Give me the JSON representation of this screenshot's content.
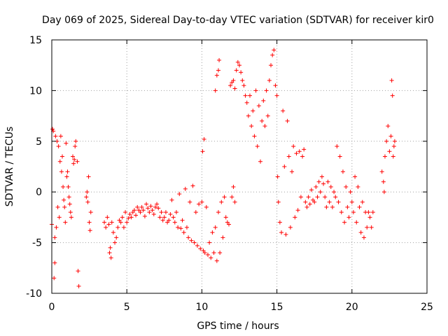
{
  "chart_data": {
    "type": "scatter",
    "title": "Day 069 of 2025, Sidereal Day-to-day VTEC variation (SDTVAR) for receiver kir0",
    "xlabel": "GPS time / hours",
    "ylabel": "SDTVAR / TECUs",
    "xlim": [
      0,
      25
    ],
    "ylim": [
      -10,
      15
    ],
    "x_ticks": [
      0,
      5,
      10,
      15,
      20,
      25
    ],
    "y_ticks": [
      -10,
      -5,
      0,
      5,
      10,
      15
    ],
    "x_tick_labels": [
      "0",
      "5",
      "10",
      "15",
      "20",
      "25"
    ],
    "y_tick_labels": [
      "-10",
      "-5",
      "0",
      "5",
      "10",
      "15"
    ],
    "grid": true,
    "marker": "+",
    "color": "#ff0000",
    "series": [
      {
        "name": "SDTVAR",
        "points": [
          [
            0.0,
            -3.2
          ],
          [
            0.05,
            6.2
          ],
          [
            0.1,
            6.0
          ],
          [
            0.15,
            -8.5
          ],
          [
            0.2,
            -4.5
          ],
          [
            0.2,
            -7.0
          ],
          [
            0.25,
            5.5
          ],
          [
            0.3,
            -3.5
          ],
          [
            0.35,
            5.0
          ],
          [
            0.4,
            -1.5
          ],
          [
            0.45,
            4.5
          ],
          [
            0.5,
            -2.5
          ],
          [
            0.55,
            3.0
          ],
          [
            0.6,
            5.5
          ],
          [
            0.65,
            2.0
          ],
          [
            0.7,
            3.5
          ],
          [
            0.75,
            0.5
          ],
          [
            0.8,
            -0.8
          ],
          [
            0.85,
            -1.5
          ],
          [
            0.9,
            -3.0
          ],
          [
            0.95,
            4.8
          ],
          [
            1.0,
            1.5
          ],
          [
            1.05,
            2.0
          ],
          [
            1.1,
            0.5
          ],
          [
            1.15,
            -0.5
          ],
          [
            1.2,
            -1.2
          ],
          [
            1.25,
            -2.0
          ],
          [
            1.3,
            -2.5
          ],
          [
            1.4,
            3.5
          ],
          [
            1.45,
            2.8
          ],
          [
            1.5,
            3.2
          ],
          [
            1.55,
            4.5
          ],
          [
            1.6,
            5.0
          ],
          [
            1.7,
            3.0
          ],
          [
            1.75,
            -7.8
          ],
          [
            1.8,
            -9.3
          ],
          [
            2.3,
            -0.5
          ],
          [
            2.35,
            0.0
          ],
          [
            2.4,
            -1.0
          ],
          [
            2.45,
            1.5
          ],
          [
            2.5,
            -3.0
          ],
          [
            2.55,
            -3.8
          ],
          [
            2.6,
            -2.0
          ],
          [
            3.5,
            -3.0
          ],
          [
            3.6,
            -3.5
          ],
          [
            3.7,
            -2.5
          ],
          [
            3.8,
            -3.2
          ],
          [
            3.85,
            -6.0
          ],
          [
            3.9,
            -5.5
          ],
          [
            3.95,
            -6.5
          ],
          [
            4.0,
            -3.0
          ],
          [
            4.1,
            -4.0
          ],
          [
            4.2,
            -5.0
          ],
          [
            4.3,
            -4.5
          ],
          [
            4.4,
            -3.5
          ],
          [
            4.5,
            -2.8
          ],
          [
            4.6,
            -3.0
          ],
          [
            4.7,
            -2.5
          ],
          [
            4.8,
            -3.5
          ],
          [
            4.9,
            -2.0
          ],
          [
            5.0,
            -3.0
          ],
          [
            5.1,
            -2.6
          ],
          [
            5.2,
            -2.2
          ],
          [
            5.3,
            -2.5
          ],
          [
            5.4,
            -2.0
          ],
          [
            5.5,
            -1.8
          ],
          [
            5.6,
            -2.3
          ],
          [
            5.7,
            -1.5
          ],
          [
            5.8,
            -1.8
          ],
          [
            5.9,
            -2.0
          ],
          [
            6.0,
            -1.5
          ],
          [
            6.1,
            -1.8
          ],
          [
            6.2,
            -2.4
          ],
          [
            6.3,
            -1.2
          ],
          [
            6.4,
            -1.6
          ],
          [
            6.5,
            -2.0
          ],
          [
            6.6,
            -1.4
          ],
          [
            6.7,
            -1.8
          ],
          [
            6.8,
            -2.2
          ],
          [
            6.9,
            -1.5
          ],
          [
            7.0,
            -1.2
          ],
          [
            7.1,
            -1.6
          ],
          [
            7.2,
            -2.5
          ],
          [
            7.3,
            -2.0
          ],
          [
            7.4,
            -2.8
          ],
          [
            7.5,
            -2.5
          ],
          [
            7.6,
            -2.0
          ],
          [
            7.7,
            -3.0
          ],
          [
            7.8,
            -2.8
          ],
          [
            7.9,
            -2.2
          ],
          [
            8.0,
            -0.8
          ],
          [
            8.1,
            -2.5
          ],
          [
            8.2,
            -3.0
          ],
          [
            8.3,
            -2.0
          ],
          [
            8.4,
            -3.5
          ],
          [
            8.5,
            -0.2
          ],
          [
            8.6,
            -3.6
          ],
          [
            8.7,
            -2.8
          ],
          [
            8.8,
            -4.0
          ],
          [
            8.9,
            0.3
          ],
          [
            9.0,
            -3.5
          ],
          [
            9.1,
            -4.5
          ],
          [
            9.2,
            -1.0
          ],
          [
            9.3,
            -4.8
          ],
          [
            9.4,
            0.6
          ],
          [
            9.5,
            -5.0
          ],
          [
            9.6,
            -2.0
          ],
          [
            9.7,
            -5.3
          ],
          [
            9.8,
            -1.2
          ],
          [
            9.9,
            -5.6
          ],
          [
            10.0,
            -1.0
          ],
          [
            10.05,
            4.0
          ],
          [
            10.1,
            -5.8
          ],
          [
            10.15,
            5.2
          ],
          [
            10.2,
            -6.0
          ],
          [
            10.3,
            -1.5
          ],
          [
            10.4,
            -6.2
          ],
          [
            10.5,
            -5.0
          ],
          [
            10.6,
            -6.5
          ],
          [
            10.7,
            -4.0
          ],
          [
            10.8,
            -6.0
          ],
          [
            10.9,
            -3.5
          ],
          [
            11.0,
            -6.8
          ],
          [
            11.1,
            -2.0
          ],
          [
            11.2,
            -6.0
          ],
          [
            11.3,
            -1.0
          ],
          [
            11.4,
            -4.5
          ],
          [
            11.5,
            -0.5
          ],
          [
            11.6,
            -2.5
          ],
          [
            11.7,
            -3.0
          ],
          [
            11.8,
            -3.2
          ],
          [
            11.1,
            12.0
          ],
          [
            11.15,
            13.0
          ],
          [
            11.0,
            11.5
          ],
          [
            10.9,
            10.0
          ],
          [
            12.0,
            -0.5
          ],
          [
            12.1,
            0.5
          ],
          [
            12.2,
            -1.0
          ],
          [
            11.9,
            10.5
          ],
          [
            12.0,
            10.8
          ],
          [
            12.1,
            11.0
          ],
          [
            12.2,
            10.2
          ],
          [
            12.3,
            12.0
          ],
          [
            12.4,
            12.8
          ],
          [
            12.5,
            12.5
          ],
          [
            12.6,
            11.8
          ],
          [
            12.7,
            11.0
          ],
          [
            12.8,
            10.5
          ],
          [
            12.9,
            9.5
          ],
          [
            13.0,
            8.8
          ],
          [
            13.1,
            7.5
          ],
          [
            13.2,
            9.5
          ],
          [
            13.3,
            6.5
          ],
          [
            13.4,
            8.0
          ],
          [
            13.5,
            5.5
          ],
          [
            13.6,
            10.0
          ],
          [
            13.7,
            4.5
          ],
          [
            13.8,
            8.5
          ],
          [
            13.9,
            3.0
          ],
          [
            14.0,
            7.0
          ],
          [
            14.1,
            9.0
          ],
          [
            14.2,
            6.5
          ],
          [
            14.3,
            10.0
          ],
          [
            14.4,
            7.5
          ],
          [
            14.5,
            11.0
          ],
          [
            14.6,
            12.5
          ],
          [
            14.7,
            13.5
          ],
          [
            14.8,
            14.0
          ],
          [
            14.9,
            10.5
          ],
          [
            15.0,
            9.5
          ],
          [
            15.05,
            1.5
          ],
          [
            15.1,
            -1.0
          ],
          [
            15.2,
            -3.0
          ],
          [
            15.3,
            -4.0
          ],
          [
            15.4,
            8.0
          ],
          [
            15.5,
            2.5
          ],
          [
            15.6,
            -4.2
          ],
          [
            15.7,
            7.0
          ],
          [
            15.8,
            3.5
          ],
          [
            15.9,
            -3.5
          ],
          [
            16.0,
            2.0
          ],
          [
            16.1,
            4.5
          ],
          [
            16.2,
            -2.5
          ],
          [
            16.3,
            3.8
          ],
          [
            16.4,
            -1.8
          ],
          [
            16.5,
            4.0
          ],
          [
            16.6,
            -0.5
          ],
          [
            16.7,
            3.5
          ],
          [
            16.8,
            4.2
          ],
          [
            16.9,
            -1.0
          ],
          [
            17.0,
            -1.5
          ],
          [
            17.1,
            -0.5
          ],
          [
            17.2,
            -1.2
          ],
          [
            17.3,
            0.2
          ],
          [
            17.4,
            -0.8
          ],
          [
            17.5,
            -1.0
          ],
          [
            17.6,
            0.5
          ],
          [
            17.7,
            -0.5
          ],
          [
            17.8,
            1.0
          ],
          [
            17.9,
            0.0
          ],
          [
            18.0,
            1.5
          ],
          [
            18.1,
            0.8
          ],
          [
            18.2,
            -0.5
          ],
          [
            18.3,
            -1.5
          ],
          [
            18.4,
            1.0
          ],
          [
            18.5,
            -1.0
          ],
          [
            18.6,
            0.5
          ],
          [
            18.7,
            -1.5
          ],
          [
            18.8,
            0.0
          ],
          [
            18.9,
            -0.5
          ],
          [
            19.0,
            4.5
          ],
          [
            19.1,
            -1.0
          ],
          [
            19.2,
            3.5
          ],
          [
            19.3,
            -2.0
          ],
          [
            19.4,
            2.0
          ],
          [
            19.5,
            -3.0
          ],
          [
            19.6,
            0.5
          ],
          [
            19.7,
            -1.5
          ],
          [
            19.8,
            -2.5
          ],
          [
            19.9,
            0.0
          ],
          [
            20.0,
            -1.0
          ],
          [
            20.1,
            -2.0
          ],
          [
            20.2,
            1.5
          ],
          [
            20.3,
            -3.0
          ],
          [
            20.4,
            0.5
          ],
          [
            20.5,
            -1.5
          ],
          [
            20.6,
            -4.0
          ],
          [
            20.7,
            -1.0
          ],
          [
            20.8,
            -4.5
          ],
          [
            20.9,
            -2.0
          ],
          [
            21.0,
            -3.5
          ],
          [
            21.1,
            -2.0
          ],
          [
            21.2,
            -2.5
          ],
          [
            21.3,
            -3.5
          ],
          [
            21.4,
            -2.0
          ],
          [
            22.0,
            2.0
          ],
          [
            22.1,
            1.0
          ],
          [
            22.15,
            0.0
          ],
          [
            22.2,
            3.5
          ],
          [
            22.3,
            5.0
          ],
          [
            22.4,
            6.5
          ],
          [
            22.5,
            4.0
          ],
          [
            22.6,
            5.5
          ],
          [
            22.65,
            11.0
          ],
          [
            22.7,
            9.5
          ],
          [
            22.75,
            3.5
          ],
          [
            22.8,
            4.5
          ],
          [
            22.85,
            5.0
          ]
        ]
      }
    ]
  }
}
